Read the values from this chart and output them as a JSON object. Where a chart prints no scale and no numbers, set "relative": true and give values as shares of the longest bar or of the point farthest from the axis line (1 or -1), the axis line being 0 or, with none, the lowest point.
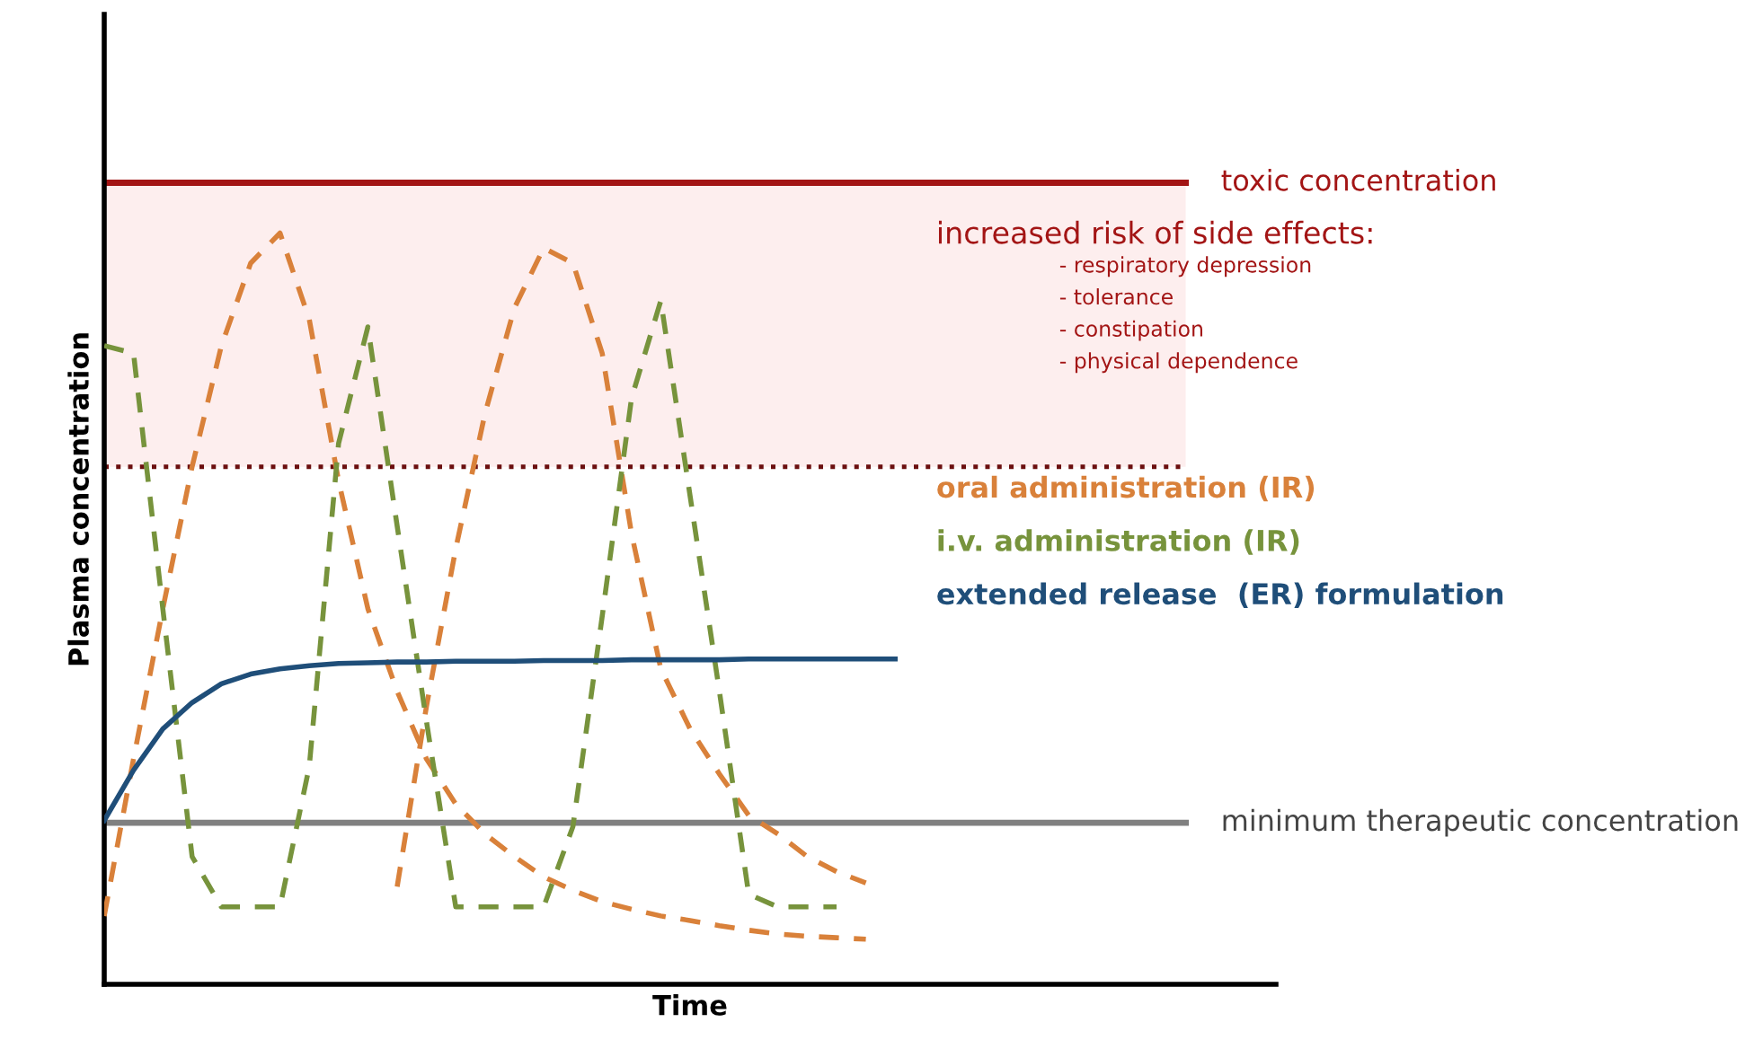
{
  "chart_data": {
    "type": "line",
    "relative": true,
    "xlabel": "Time",
    "ylabel": "Plasma concentration",
    "marker": "none",
    "categories": [
      null,
      null,
      null,
      null,
      null,
      null,
      null,
      null,
      null,
      null,
      null,
      null,
      null,
      null,
      null,
      null,
      null,
      null,
      null,
      null,
      null,
      null,
      null,
      null,
      null,
      null,
      null,
      null
    ],
    "series": [
      {
        "name": "oral administration (IR)",
        "color": "#d9813a",
        "line_style": "dashed",
        "values": [
          0.091,
          0.3,
          0.5,
          0.689,
          0.85,
          0.96,
          1.0,
          0.885,
          0.67,
          0.5,
          0.39,
          0.3,
          0.24,
          0.2,
          0.17,
          0.143,
          0.125,
          0.11,
          0.1,
          0.091,
          0.085,
          0.078,
          0.072,
          0.067,
          0.064,
          0.062,
          0.06,
          null
        ]
      },
      {
        "color": "#d9813a",
        "line_style": "dashed",
        "values": [
          null,
          null,
          null,
          null,
          null,
          null,
          null,
          null,
          null,
          null,
          0.13,
          0.37,
          0.58,
          0.76,
          0.9,
          0.98,
          0.96,
          0.84,
          0.6,
          0.42,
          0.34,
          0.28,
          0.225,
          0.2,
          0.17,
          0.15,
          0.135,
          null
        ]
      },
      {
        "name": "i.v. administration (IR)",
        "color": "#77933c",
        "line_style": "dashed",
        "values": [
          0.85,
          0.84,
          0.5,
          0.17,
          0.103,
          0.103,
          0.103,
          0.29,
          0.72,
          0.875,
          0.61,
          0.35,
          0.103,
          0.103,
          0.103,
          0.103,
          0.21,
          0.49,
          0.78,
          0.91,
          0.65,
          0.39,
          0.12,
          0.103,
          0.103,
          0.103,
          null,
          null
        ]
      },
      {
        "name": "extended release  (ER) formulation",
        "color": "#1f4e79",
        "line_style": "solid",
        "values": [
          0.218,
          0.285,
          0.34,
          0.375,
          0.4,
          0.413,
          0.42,
          0.424,
          0.427,
          0.428,
          0.429,
          0.429,
          0.43,
          0.43,
          0.43,
          0.431,
          0.431,
          0.431,
          0.432,
          0.432,
          0.432,
          0.432,
          0.433,
          0.433,
          0.433,
          0.433,
          0.433,
          0.433
        ]
      }
    ],
    "ref_lines": [
      {
        "axis": "y",
        "value": 1.067,
        "label": "toxic concentration",
        "color": "#a31515",
        "line_style": "solid"
      },
      {
        "axis": "y",
        "value": 0.689,
        "label": null,
        "color": "#6b0f0f",
        "line_style": "dotted"
      },
      {
        "axis": "y",
        "value": 0.215,
        "label": "minimum therapeutic concentration",
        "color": "#808080",
        "line_style": "solid"
      }
    ],
    "bands": [
      {
        "axis": "y",
        "from": 0.689,
        "to": 1.067,
        "label": "increased risk of side effects:",
        "color": "#fdeeee"
      }
    ],
    "annotations": [
      "- respiratory depression",
      "- tolerance",
      "- constipation",
      "- physical dependence"
    ]
  }
}
